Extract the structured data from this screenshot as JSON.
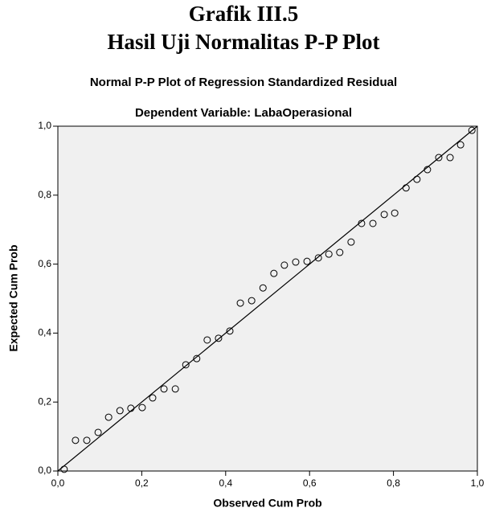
{
  "header": {
    "figure": "Grafik III.5",
    "caption": "Hasil Uji Normalitas P-P Plot"
  },
  "chart_data": {
    "type": "scatter",
    "title": "Normal P-P Plot of Regression Standardized Residual",
    "subtitle": "Dependent Variable: LabaOperasional",
    "x_label": "Observed Cum Prob",
    "y_label": "Expected Cum Prob",
    "x": [
      0.015,
      0.042,
      0.069,
      0.096,
      0.121,
      0.148,
      0.174,
      0.201,
      0.226,
      0.253,
      0.28,
      0.305,
      0.331,
      0.356,
      0.383,
      0.41,
      0.435,
      0.462,
      0.489,
      0.515,
      0.54,
      0.567,
      0.594,
      0.621,
      0.646,
      0.672,
      0.699,
      0.724,
      0.751,
      0.778,
      0.803,
      0.83,
      0.856,
      0.881,
      0.908,
      0.935,
      0.96,
      0.987
    ],
    "values": [
      0.005,
      0.089,
      0.089,
      0.112,
      0.156,
      0.175,
      0.182,
      0.184,
      0.212,
      0.238,
      0.238,
      0.308,
      0.326,
      0.38,
      0.385,
      0.406,
      0.487,
      0.494,
      0.531,
      0.573,
      0.597,
      0.606,
      0.608,
      0.618,
      0.629,
      0.634,
      0.664,
      0.718,
      0.718,
      0.744,
      0.748,
      0.821,
      0.846,
      0.874,
      0.909,
      0.909,
      0.946,
      0.988
    ],
    "xlim": [
      0,
      1
    ],
    "ylim": [
      0,
      1
    ],
    "xticks": [
      {
        "value": 0,
        "label": "0,0"
      },
      {
        "value": 0.2,
        "label": "0,2"
      },
      {
        "value": 0.4,
        "label": "0,4"
      },
      {
        "value": 0.6,
        "label": "0,6"
      },
      {
        "value": 0.8,
        "label": "0,8"
      },
      {
        "value": 1,
        "label": "1,0"
      }
    ],
    "yticks": [
      {
        "value": 0,
        "label": "0,0"
      },
      {
        "value": 0.2,
        "label": "0,2"
      },
      {
        "value": 0.4,
        "label": "0,4"
      },
      {
        "value": 0.6,
        "label": "0,6"
      },
      {
        "value": 0.8,
        "label": "0,8"
      },
      {
        "value": 1,
        "label": "1,0"
      }
    ],
    "grid": false,
    "color": "#000000",
    "background": "#f0f0f0"
  }
}
